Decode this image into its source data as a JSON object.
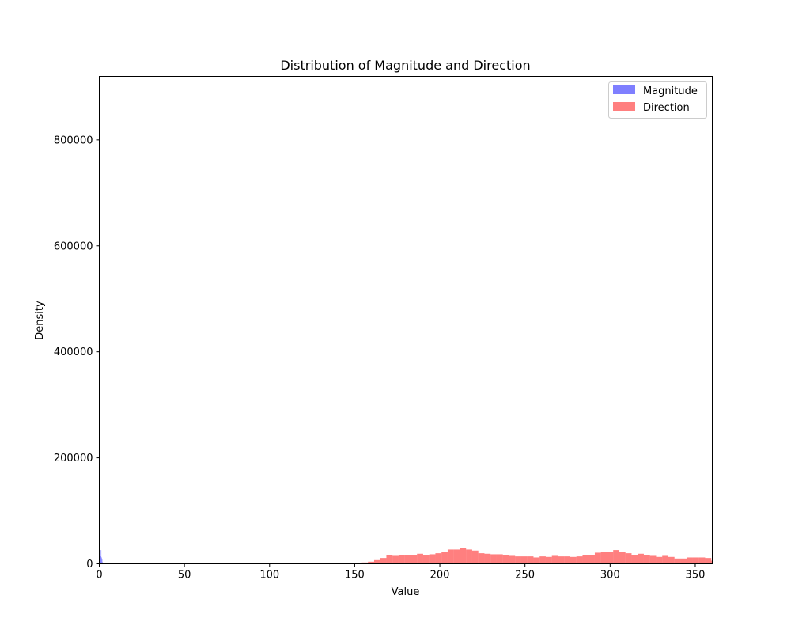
{
  "chart_data": {
    "type": "bar",
    "title": "Distribution of Magnitude and Direction",
    "xlabel": "Value",
    "ylabel": "Density",
    "xlim": [
      0,
      360
    ],
    "ylim": [
      0,
      920000
    ],
    "xticks": [
      0,
      50,
      100,
      150,
      200,
      250,
      300,
      350
    ],
    "yticks": [
      0,
      200000,
      400000,
      600000,
      800000
    ],
    "grid": false,
    "legend_position": "top-right",
    "series": [
      {
        "name": "Magnitude",
        "color": "#0000ff",
        "opacity": 0.5,
        "bins": [
          {
            "x0": 0.0,
            "x1": 0.3,
            "value": 16000
          },
          {
            "x0": 0.3,
            "x1": 0.6,
            "value": 9000
          },
          {
            "x0": 0.6,
            "x1": 0.9,
            "value": 14000
          },
          {
            "x0": 0.9,
            "x1": 1.2,
            "value": 26000
          },
          {
            "x0": 1.2,
            "x1": 1.5,
            "value": 12000
          },
          {
            "x0": 1.5,
            "x1": 1.8,
            "value": 8000
          },
          {
            "x0": 1.8,
            "x1": 2.1,
            "value": 3000
          },
          {
            "x0": 2.1,
            "x1": 2.4,
            "value": 1000
          }
        ]
      },
      {
        "name": "Direction",
        "color": "#ff0000",
        "opacity": 0.5,
        "bin_start": 129,
        "bin_width": 3.6,
        "values": [
          500,
          600,
          700,
          800,
          900,
          1100,
          1300,
          2500,
          4000,
          7000,
          11000,
          16000,
          15000,
          16000,
          17000,
          17000,
          19000,
          17000,
          18000,
          20000,
          22000,
          27000,
          27000,
          30000,
          27000,
          25000,
          20000,
          19000,
          18000,
          18000,
          16000,
          15000,
          14000,
          14000,
          14000,
          12000,
          14000,
          13000,
          15000,
          14000,
          14000,
          13000,
          14000,
          16000,
          16000,
          21000,
          22000,
          22000,
          26000,
          23000,
          20000,
          17000,
          19000,
          16000,
          15000,
          13000,
          15000,
          13000,
          10000,
          10000,
          12000,
          12000,
          12000,
          11000,
          6000,
          3000,
          1200
        ]
      }
    ]
  }
}
